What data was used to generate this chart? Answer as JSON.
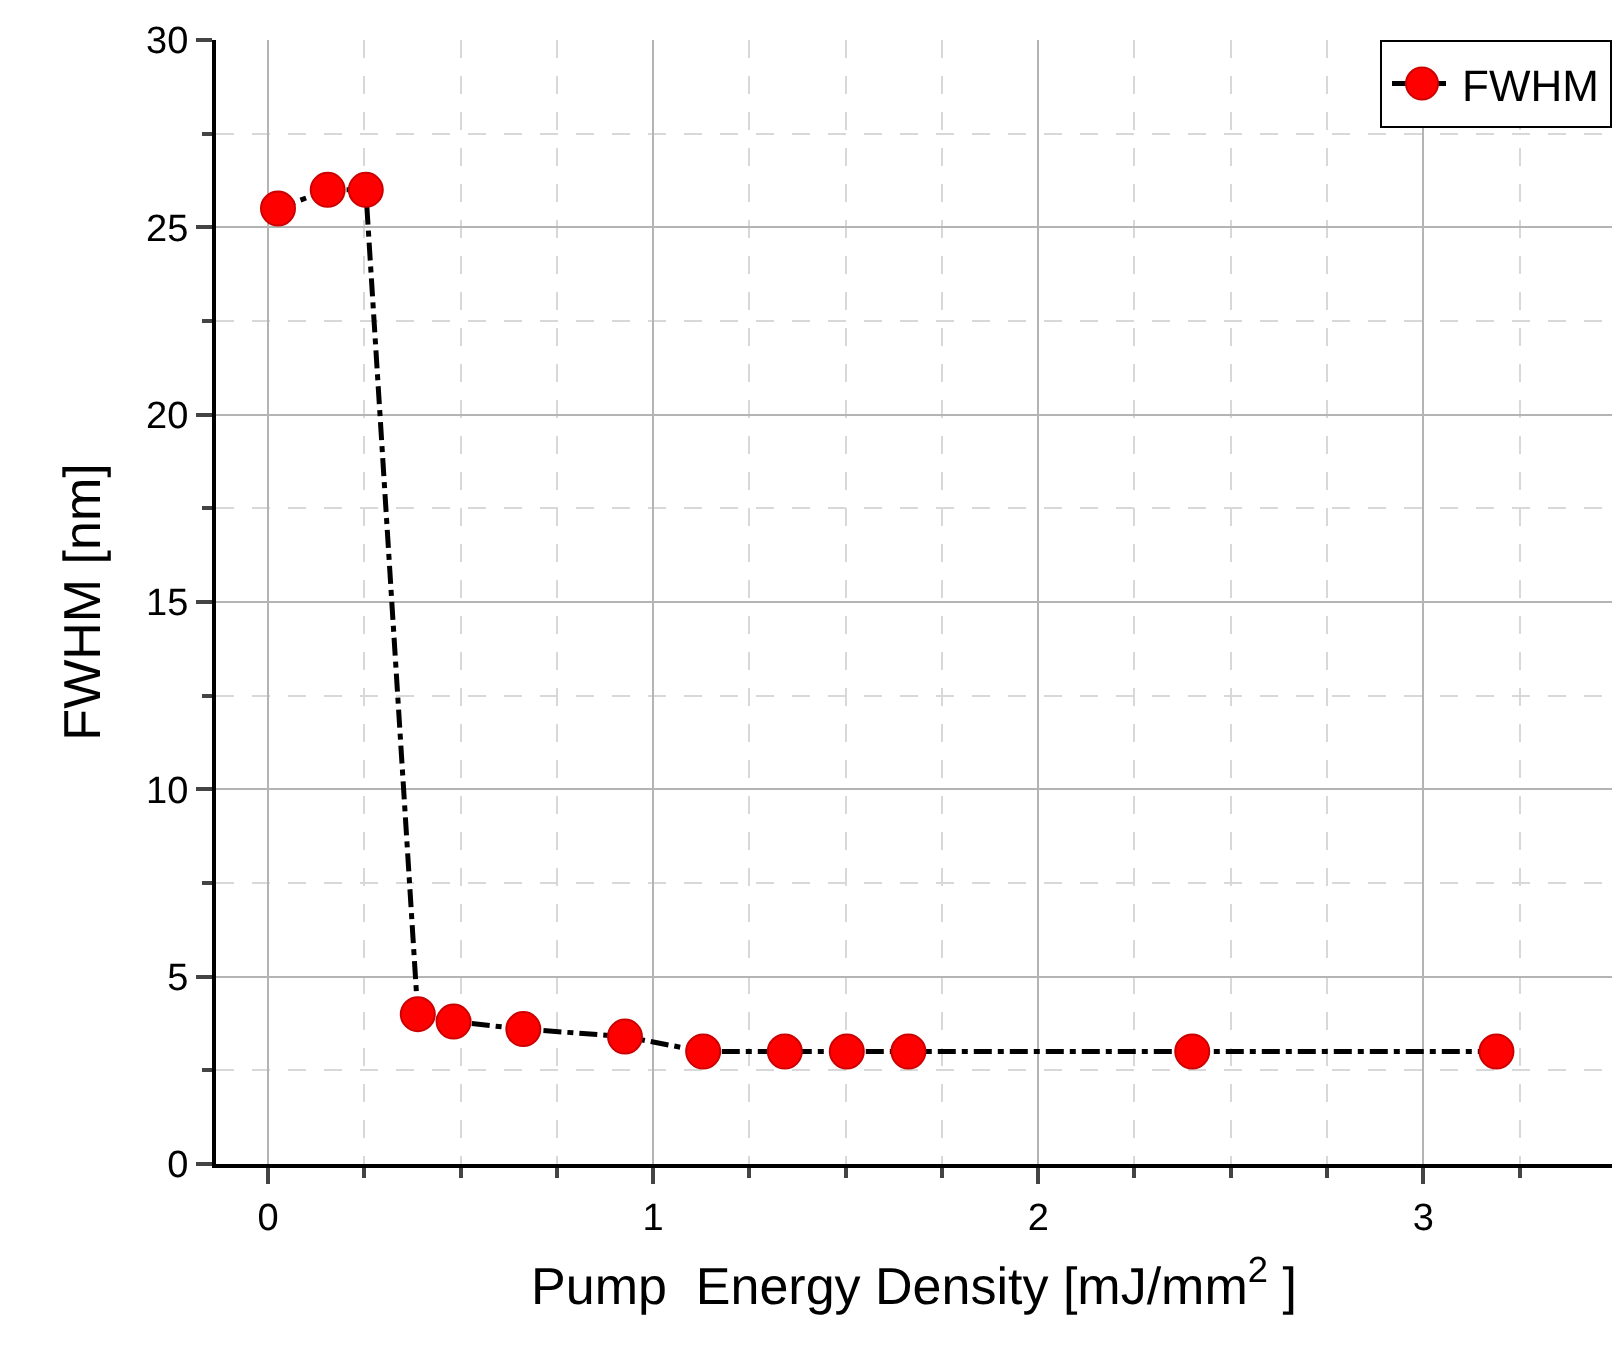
{
  "chart_data": {
    "type": "line",
    "xlabel": "Pump  Energy Density [mJ/mm$^{2}$ ]",
    "ylabel": "FWHM [nm]",
    "x": [
      0.026,
      0.155,
      0.254,
      0.389,
      0.482,
      0.663,
      0.927,
      1.13,
      1.342,
      1.503,
      1.663,
      2.4,
      3.19
    ],
    "series": [
      {
        "name": "FWHM",
        "color": "#ff0000",
        "values": [
          25.5,
          26.0,
          26.0,
          4.0,
          3.8,
          3.6,
          3.4,
          3.0,
          3.0,
          3.0,
          3.0,
          3.0,
          3.0
        ]
      }
    ],
    "xlim": [
      -0.135,
      3.49
    ],
    "xticks": [
      0,
      1,
      2,
      3
    ],
    "ylim": [
      0,
      30
    ],
    "yticks": [
      0,
      5,
      10,
      15,
      20,
      25,
      30
    ],
    "grid": true,
    "legend": "top right",
    "marker": "circle",
    "line_style": "dashed"
  }
}
